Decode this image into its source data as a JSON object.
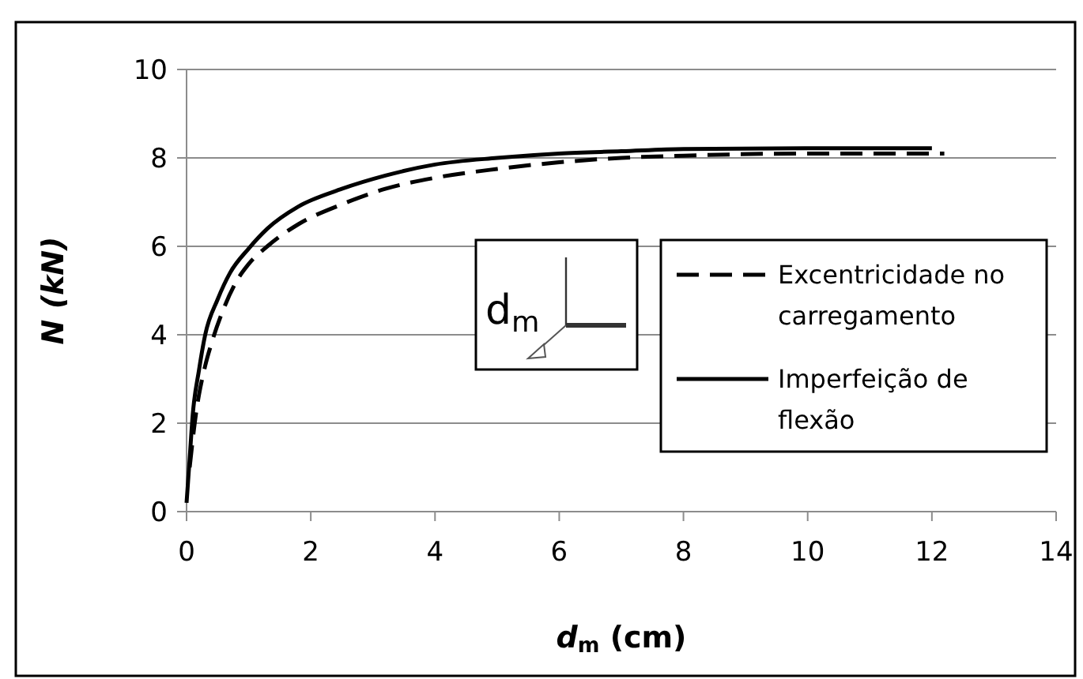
{
  "chart_data": {
    "type": "line",
    "xlabel": "d$_{m}$ (cm)",
    "ylabel": "N (kN)",
    "xlim": [
      0,
      14
    ],
    "xticks": [
      0,
      2,
      4,
      6,
      8,
      10,
      12,
      14
    ],
    "ylim": [
      0,
      10
    ],
    "yticks": [
      0,
      2,
      4,
      6,
      8,
      10
    ],
    "grid": "y",
    "legend": "right",
    "annotations": [
      "d$_{m}$"
    ],
    "series": [
      {
        "name": "Excentricidade no carregamento",
        "color": "#000000",
        "line_style": "dashed",
        "x": [
          0.05,
          0.15,
          0.3,
          0.4,
          0.6,
          0.8,
          1.0,
          1.3,
          1.8,
          2.5,
          3.2,
          4,
          5,
          6,
          7,
          8,
          10,
          12.2
        ],
        "values": [
          1.0,
          2.2,
          3.3,
          3.8,
          4.6,
          5.2,
          5.6,
          6.0,
          6.5,
          6.95,
          7.3,
          7.55,
          7.75,
          7.9,
          8.0,
          8.05,
          8.1,
          8.1
        ]
      },
      {
        "name": "Imperfeição de flexão",
        "color": "#000000",
        "line_style": "solid",
        "x": [
          0,
          0.05,
          0.1,
          0.2,
          0.3,
          0.5,
          0.7,
          1,
          1.3,
          1.8,
          2.5,
          3.2,
          4,
          5,
          6,
          7,
          8,
          10,
          12
        ],
        "values": [
          0.2,
          1.2,
          2.2,
          3.2,
          4,
          4.8,
          5.4,
          5.95,
          6.4,
          6.9,
          7.3,
          7.6,
          7.85,
          8.0,
          8.1,
          8.15,
          8.2,
          8.22,
          8.22
        ]
      }
    ]
  }
}
